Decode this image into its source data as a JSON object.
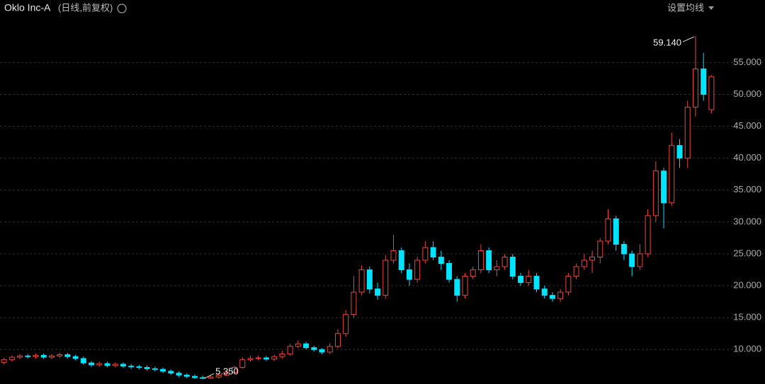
{
  "chart_data": {
    "type": "candlestick",
    "title": "Oklo Inc-A",
    "subtitle": "(日线,前复权)",
    "settings_label": "设置均线",
    "up_color": "#f0443c",
    "down_color": "#00e4ff",
    "grid": true,
    "ylim": [
      4.6,
      64.8
    ],
    "yticks": [
      {
        "value": 10,
        "label": "10.000"
      },
      {
        "value": 15,
        "label": "15.000"
      },
      {
        "value": 20,
        "label": "20.000"
      },
      {
        "value": 25,
        "label": "25.000"
      },
      {
        "value": 30,
        "label": "30.000"
      },
      {
        "value": 35,
        "label": "35.000"
      },
      {
        "value": 40,
        "label": "40.000"
      },
      {
        "value": 45,
        "label": "45.000"
      },
      {
        "value": 50,
        "label": "50.000"
      },
      {
        "value": 55,
        "label": "55.000"
      }
    ],
    "open": [
      8.0,
      8.4,
      8.8,
      9.0,
      8.9,
      9.1,
      8.8,
      9.0,
      9.2,
      8.9,
      8.6,
      7.9,
      7.6,
      7.8,
      7.5,
      7.7,
      7.4,
      7.3,
      7.2,
      7.0,
      6.9,
      6.6,
      6.3,
      6.0,
      5.8,
      5.6,
      5.5,
      5.7,
      6.0,
      6.4,
      7.2,
      8.4,
      8.6,
      8.7,
      8.5,
      8.9,
      9.3,
      10.5,
      10.9,
      10.3,
      10.0,
      9.6,
      10.5,
      12.5,
      15.5,
      19.0,
      22.5,
      19.5,
      18.5,
      24.0,
      25.5,
      22.5,
      21.0,
      24.0,
      26.0,
      24.5,
      23.5,
      21.0,
      18.5,
      21.5,
      22.5,
      25.5,
      22.5,
      23.0,
      24.5,
      21.5,
      20.5,
      21.5,
      19.5,
      18.5,
      18.0,
      19.0,
      21.5,
      23.0,
      24.0,
      24.5,
      27.0,
      30.5,
      26.5,
      25.0,
      23.0,
      25.0,
      31.0,
      38.0,
      33.0,
      42.0,
      40.0,
      48.0,
      54.0,
      47.6
    ],
    "high": [
      8.7,
      9.1,
      9.3,
      9.3,
      9.4,
      9.4,
      9.3,
      9.5,
      9.5,
      9.2,
      8.9,
      8.2,
      8.1,
      8.1,
      8.0,
      8.0,
      7.7,
      7.6,
      7.5,
      7.3,
      7.2,
      6.9,
      6.6,
      6.3,
      6.1,
      5.9,
      6.0,
      6.3,
      6.7,
      7.5,
      8.8,
      9.0,
      9.1,
      9.0,
      9.2,
      9.8,
      10.9,
      11.4,
      11.2,
      10.6,
      10.2,
      11.0,
      13.2,
      16.2,
      21.5,
      23.2,
      23.0,
      20.5,
      24.8,
      28.0,
      26.0,
      23.5,
      24.5,
      27.0,
      27.0,
      25.5,
      24.0,
      21.5,
      22.0,
      23.0,
      26.5,
      26.0,
      24.0,
      25.0,
      25.0,
      22.0,
      22.5,
      22.0,
      20.0,
      19.0,
      19.5,
      22.0,
      23.5,
      25.0,
      25.5,
      27.5,
      32.0,
      31.0,
      27.0,
      25.5,
      26.5,
      32.0,
      39.5,
      38.5,
      44.0,
      43.0,
      49.0,
      59.14,
      56.5,
      53.0
    ],
    "low": [
      7.7,
      8.1,
      8.5,
      8.6,
      8.6,
      8.5,
      8.5,
      8.7,
      8.6,
      8.3,
      7.6,
      7.3,
      7.3,
      7.2,
      7.2,
      7.1,
      7.0,
      6.9,
      6.7,
      6.6,
      6.3,
      6.0,
      5.7,
      5.5,
      5.4,
      5.35,
      5.4,
      5.5,
      5.8,
      6.2,
      7.0,
      8.1,
      8.3,
      8.2,
      8.2,
      8.6,
      9.0,
      10.2,
      10.0,
      9.7,
      9.3,
      9.3,
      10.2,
      12.0,
      15.0,
      18.5,
      18.8,
      17.8,
      18.0,
      23.5,
      22.0,
      20.0,
      20.5,
      23.5,
      24.0,
      22.5,
      20.5,
      17.5,
      18.0,
      21.0,
      22.0,
      22.0,
      21.5,
      22.5,
      21.0,
      20.0,
      20.0,
      19.0,
      18.0,
      17.5,
      17.5,
      18.5,
      21.0,
      22.5,
      22.0,
      23.5,
      26.5,
      25.5,
      24.0,
      21.5,
      22.5,
      24.5,
      30.0,
      29.0,
      32.5,
      38.5,
      38.5,
      46.5,
      49.0,
      47.0
    ],
    "close": [
      8.4,
      8.8,
      9.0,
      8.9,
      9.1,
      8.8,
      9.0,
      9.2,
      8.9,
      8.6,
      7.9,
      7.6,
      7.8,
      7.5,
      7.7,
      7.4,
      7.3,
      7.2,
      7.0,
      6.9,
      6.6,
      6.3,
      6.0,
      5.8,
      5.6,
      5.5,
      5.7,
      6.0,
      6.4,
      7.2,
      8.4,
      8.6,
      8.7,
      8.5,
      8.9,
      9.3,
      10.5,
      10.9,
      10.3,
      10.0,
      9.6,
      10.5,
      12.5,
      15.5,
      19.0,
      22.5,
      19.5,
      18.5,
      24.0,
      25.5,
      22.5,
      21.0,
      24.0,
      26.0,
      24.5,
      23.5,
      21.0,
      18.5,
      21.5,
      22.5,
      25.5,
      22.5,
      23.0,
      24.5,
      21.5,
      20.5,
      21.5,
      19.5,
      18.5,
      18.0,
      19.0,
      21.5,
      23.0,
      24.0,
      24.5,
      27.0,
      30.5,
      26.5,
      25.0,
      23.0,
      25.0,
      31.0,
      38.0,
      33.0,
      42.0,
      40.0,
      48.0,
      54.0,
      50.0,
      52.8
    ],
    "annotations": [
      {
        "text": "59.140",
        "value": 59.14
      },
      {
        "text": "5.350",
        "value": 5.35
      }
    ]
  }
}
